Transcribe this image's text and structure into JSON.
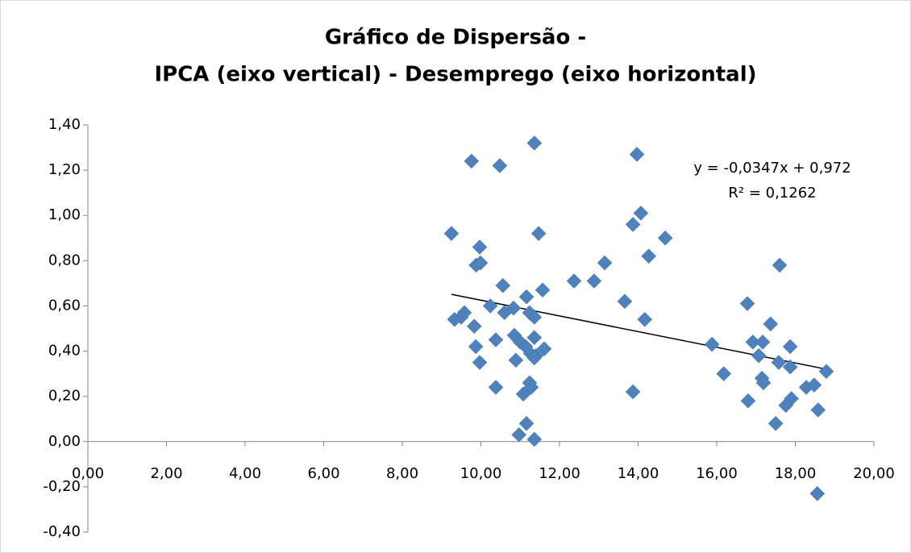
{
  "chart_data": {
    "type": "scatter",
    "title_lines": [
      "Gráfico de Dispersão -",
      "IPCA (eixo vertical) - Desemprego (eixo horizontal)"
    ],
    "color": "#4f81bd",
    "x": [
      9.25,
      9.76,
      10.48,
      11.36,
      13.97,
      14.07,
      13.87,
      14.69,
      11.47,
      9.97,
      9.88,
      9.99,
      13.15,
      14.27,
      17.6,
      12.88,
      12.37,
      10.56,
      11.57,
      11.16,
      13.66,
      16.78,
      10.24,
      10.83,
      11.24,
      10.6,
      9.58,
      9.5,
      9.33,
      11.36,
      14.17,
      17.37,
      9.83,
      10.85,
      11.36,
      10.38,
      11.0,
      16.92,
      17.17,
      15.88,
      11.14,
      9.87,
      17.87,
      11.61,
      11.26,
      17.07,
      11.4,
      11.36,
      10.89,
      9.97,
      17.58,
      17.87,
      18.79,
      16.18,
      17.15,
      17.19,
      11.24,
      11.28,
      10.38,
      18.28,
      18.48,
      11.08,
      13.87,
      17.9,
      16.8,
      17.76,
      18.58,
      11.16,
      17.5,
      10.97,
      11.36,
      18.56
    ],
    "values": [
      0.92,
      1.24,
      1.22,
      1.32,
      1.27,
      1.01,
      0.96,
      0.9,
      0.92,
      0.86,
      0.78,
      0.79,
      0.79,
      0.82,
      0.78,
      0.71,
      0.71,
      0.69,
      0.67,
      0.64,
      0.62,
      0.61,
      0.6,
      0.59,
      0.57,
      0.57,
      0.57,
      0.55,
      0.54,
      0.55,
      0.54,
      0.52,
      0.51,
      0.47,
      0.46,
      0.45,
      0.44,
      0.44,
      0.44,
      0.43,
      0.42,
      0.42,
      0.42,
      0.41,
      0.39,
      0.38,
      0.38,
      0.37,
      0.36,
      0.35,
      0.35,
      0.33,
      0.31,
      0.3,
      0.28,
      0.26,
      0.26,
      0.24,
      0.24,
      0.24,
      0.25,
      0.21,
      0.22,
      0.19,
      0.18,
      0.16,
      0.14,
      0.08,
      0.08,
      0.03,
      0.01,
      -0.23
    ],
    "trendline": {
      "slope": -0.0347,
      "intercept": 0.972,
      "label": "y = -0,0347x + 0,972",
      "r2_label": "R² = 0,1262"
    },
    "xlim": [
      0,
      20
    ],
    "xticks": [
      {
        "value": 0,
        "label": "0,00"
      },
      {
        "value": 2,
        "label": "2,00"
      },
      {
        "value": 4,
        "label": "4,00"
      },
      {
        "value": 6,
        "label": "6,00"
      },
      {
        "value": 8,
        "label": "8,00"
      },
      {
        "value": 10,
        "label": "10,00"
      },
      {
        "value": 12,
        "label": "12,00"
      },
      {
        "value": 14,
        "label": "14,00"
      },
      {
        "value": 16,
        "label": "16,00"
      },
      {
        "value": 18,
        "label": "18,00"
      },
      {
        "value": 20,
        "label": "20,00"
      }
    ],
    "ylim": [
      -0.4,
      1.4
    ],
    "yticks": [
      {
        "value": -0.4,
        "label": "-0,40"
      },
      {
        "value": -0.2,
        "label": "-0,20"
      },
      {
        "value": 0,
        "label": "0,00"
      },
      {
        "value": 0.2,
        "label": "0,20"
      },
      {
        "value": 0.4,
        "label": "0,40"
      },
      {
        "value": 0.6,
        "label": "0,60"
      },
      {
        "value": 0.8,
        "label": "0,80"
      },
      {
        "value": 1.0,
        "label": "1,00"
      },
      {
        "value": 1.2,
        "label": "1,20"
      },
      {
        "value": 1.4,
        "label": "1,40"
      }
    ]
  }
}
